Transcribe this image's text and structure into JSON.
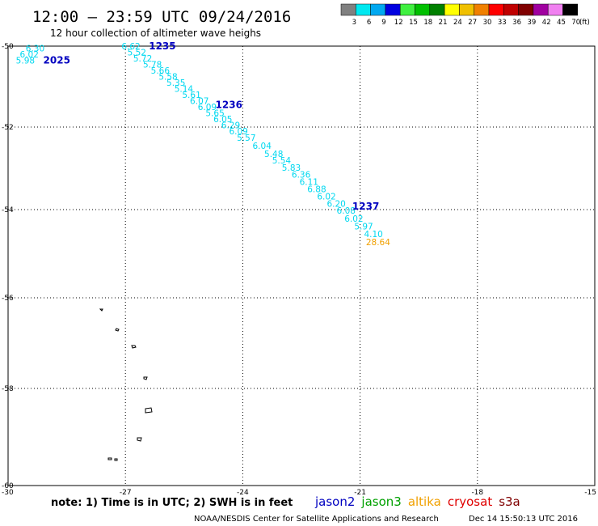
{
  "header": {
    "title": "12:00 – 23:59 UTC 09/24/2016",
    "subtitle": "12 hour collection of altimeter wave heighs"
  },
  "color_scale": {
    "labels": [
      "3",
      "6",
      "9",
      "12",
      "15",
      "18",
      "21",
      "24",
      "27",
      "30",
      "33",
      "36",
      "39",
      "42",
      "45",
      "70"
    ],
    "unit": "(ft)",
    "colors": [
      "#808080",
      "#00e8f0",
      "#00a8f0",
      "#0000e0",
      "#40f040",
      "#00c000",
      "#008000",
      "#ffff00",
      "#f0c000",
      "#f08000",
      "#ff0000",
      "#c00000",
      "#800000",
      "#a000a0",
      "#f080f0",
      "#000000"
    ]
  },
  "axes": {
    "lat_labels": [
      "-50",
      "-52",
      "-54",
      "-56",
      "-58",
      "-60"
    ],
    "lon_labels": [
      "-30",
      "-27",
      "-24",
      "-21",
      "-18",
      "-15"
    ]
  },
  "readings": [
    {
      "t": "6.30",
      "c": "#00d8f0",
      "lon": -29.55,
      "lat": -50.05
    },
    {
      "t": "6.02",
      "c": "#00d8f0",
      "lon": -29.7,
      "lat": -50.2
    },
    {
      "t": "5.98",
      "c": "#00d8f0",
      "lon": -29.8,
      "lat": -50.35
    },
    {
      "t": "6.62",
      "c": "#00d8f0",
      "lon": -27.1,
      "lat": -50.0
    },
    {
      "t": "5.52",
      "c": "#00d8f0",
      "lon": -26.95,
      "lat": -50.15
    },
    {
      "t": "5.72",
      "c": "#00d8f0",
      "lon": -26.8,
      "lat": -50.3
    },
    {
      "t": "5.78",
      "c": "#00d8f0",
      "lon": -26.55,
      "lat": -50.45
    },
    {
      "t": "5.66",
      "c": "#00d8f0",
      "lon": -26.35,
      "lat": -50.6
    },
    {
      "t": "5.58",
      "c": "#00d8f0",
      "lon": -26.15,
      "lat": -50.75
    },
    {
      "t": "5.35",
      "c": "#00d8f0",
      "lon": -25.95,
      "lat": -50.9
    },
    {
      "t": "5.14",
      "c": "#00d8f0",
      "lon": -25.75,
      "lat": -51.05
    },
    {
      "t": "5.61",
      "c": "#00d8f0",
      "lon": -25.55,
      "lat": -51.2
    },
    {
      "t": "6.07",
      "c": "#00d8f0",
      "lon": -25.35,
      "lat": -51.35
    },
    {
      "t": "6.09",
      "c": "#00d8f0",
      "lon": -25.15,
      "lat": -51.5
    },
    {
      "t": "5.65",
      "c": "#00d8f0",
      "lon": -24.95,
      "lat": -51.65
    },
    {
      "t": "6.05",
      "c": "#00d8f0",
      "lon": -24.75,
      "lat": -51.8
    },
    {
      "t": "6.29",
      "c": "#00d8f0",
      "lon": -24.55,
      "lat": -51.95
    },
    {
      "t": "6.09",
      "c": "#00d8f0",
      "lon": -24.35,
      "lat": -52.1
    },
    {
      "t": "5.57",
      "c": "#00d8f0",
      "lon": -24.15,
      "lat": -52.25
    },
    {
      "t": "6.04",
      "c": "#00d8f0",
      "lon": -23.75,
      "lat": -52.45
    },
    {
      "t": "5.48",
      "c": "#00d8f0",
      "lon": -23.45,
      "lat": -52.65
    },
    {
      "t": "5.54",
      "c": "#00d8f0",
      "lon": -23.25,
      "lat": -52.8
    },
    {
      "t": "5.83",
      "c": "#00d8f0",
      "lon": -23.0,
      "lat": -52.98
    },
    {
      "t": "6.36",
      "c": "#00d8f0",
      "lon": -22.75,
      "lat": -53.15
    },
    {
      "t": "6.11",
      "c": "#00d8f0",
      "lon": -22.55,
      "lat": -53.32
    },
    {
      "t": "6.88",
      "c": "#00d8f0",
      "lon": -22.35,
      "lat": -53.5
    },
    {
      "t": "6.02",
      "c": "#00d8f0",
      "lon": -22.1,
      "lat": -53.68
    },
    {
      "t": "6.20",
      "c": "#00d8f0",
      "lon": -21.85,
      "lat": -53.85
    },
    {
      "t": "6.08",
      "c": "#00d8f0",
      "lon": -21.6,
      "lat": -54.02
    },
    {
      "t": "6.02",
      "c": "#00d8f0",
      "lon": -21.4,
      "lat": -54.2
    },
    {
      "t": "5.97",
      "c": "#00d8f0",
      "lon": -21.15,
      "lat": -54.38
    },
    {
      "t": "4.10",
      "c": "#00d8f0",
      "lon": -20.9,
      "lat": -54.55
    },
    {
      "t": "28.64",
      "c": "#f0a000",
      "lon": -20.85,
      "lat": -54.73
    }
  ],
  "pass_labels": [
    {
      "t": "2025",
      "c": "#0000c0",
      "lon": -29.1,
      "lat": -50.35
    },
    {
      "t": "1235",
      "c": "#0000c0",
      "lon": -26.4,
      "lat": -50.0
    },
    {
      "t": "1236",
      "c": "#0000c0",
      "lon": -24.7,
      "lat": -51.45
    },
    {
      "t": "1237",
      "c": "#0000c0",
      "lon": -21.2,
      "lat": -53.92
    }
  ],
  "footer": {
    "note": "note: 1) Time is in UTC; 2) SWH is in feet",
    "missions": [
      {
        "name": "jason2",
        "color": "#0000c0"
      },
      {
        "name": "jason3",
        "color": "#00a000"
      },
      {
        "name": "altika",
        "color": "#f0a000"
      },
      {
        "name": "cryosat",
        "color": "#e00000"
      },
      {
        "name": "s3a",
        "color": "#800000"
      }
    ],
    "credit": "NOAA/NESDIS Center for Satellite Applications and Research",
    "timestamp": "Dec 14 15:50:13 UTC 2016"
  }
}
